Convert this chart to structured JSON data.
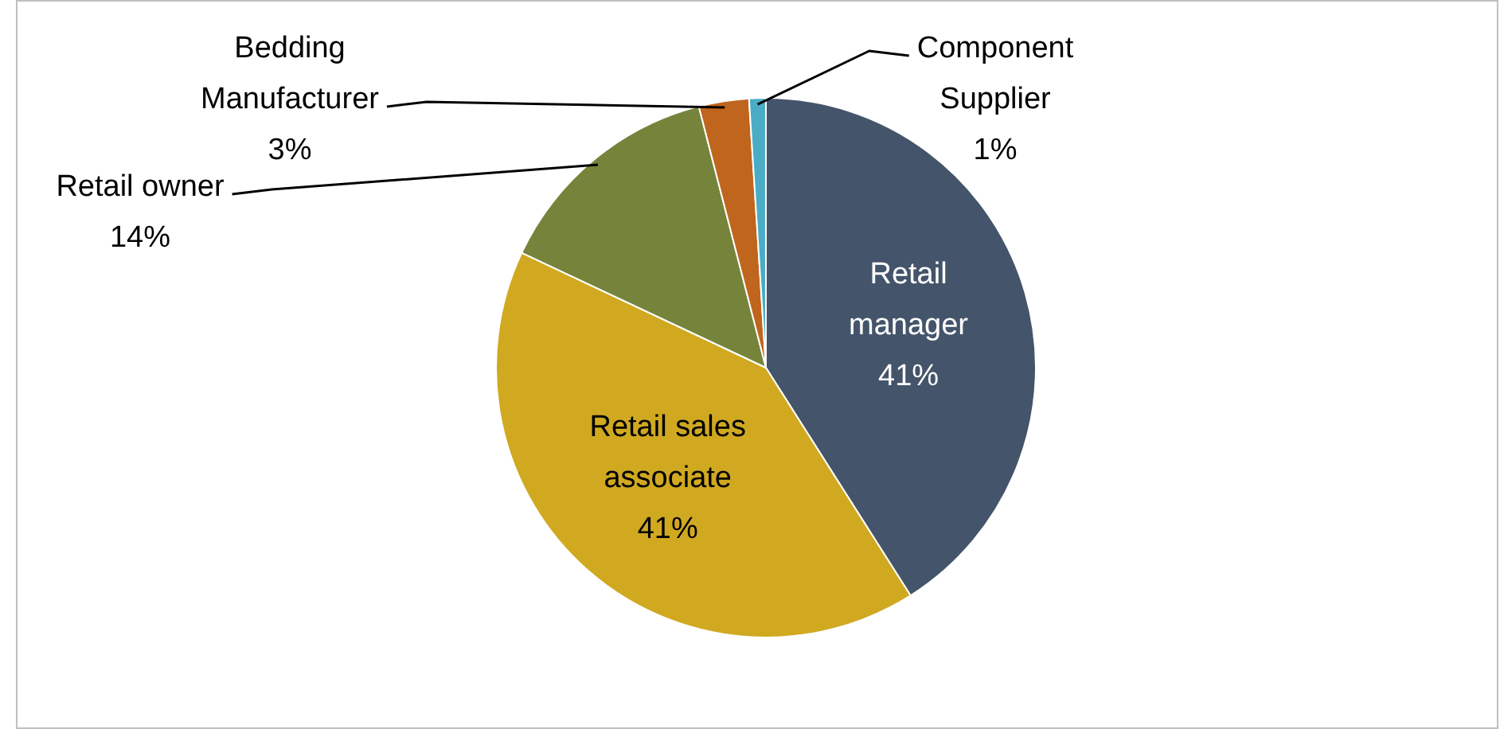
{
  "chart_data": {
    "type": "pie",
    "categories": [
      "Retail manager",
      "Retail sales associate",
      "Retail owner",
      "Bedding Manufacturer",
      "Component Supplier"
    ],
    "values": [
      41,
      41,
      14,
      3,
      1
    ],
    "value_labels": [
      "41%",
      "41%",
      "14%",
      "3%",
      "1%"
    ],
    "colors": [
      "#44546a",
      "#d0a921",
      "#76843b",
      "#c0651d",
      "#4bacc6"
    ],
    "legend": false
  }
}
